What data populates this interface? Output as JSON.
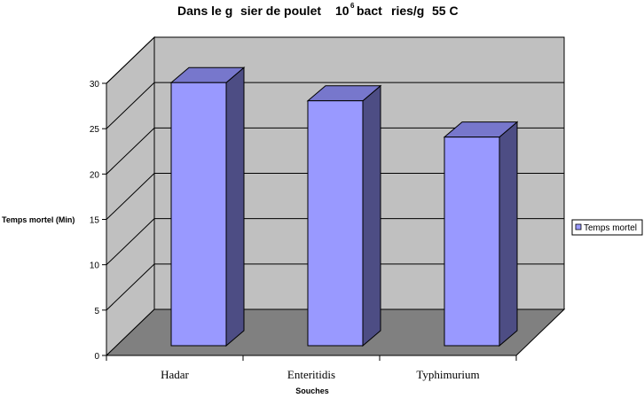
{
  "chart_data": {
    "type": "bar",
    "title": {
      "part1": "Dans le g",
      "part2": "sier de poulet",
      "part3": "10",
      "superscript": "6",
      "part4": "bact",
      "part5": "ries/g",
      "part6": "55 C"
    },
    "xlabel": "Souches",
    "ylabel": "Temps mortel (Min)",
    "categories": [
      "Hadar",
      "Enteritidis",
      "Typhimurium"
    ],
    "series": [
      {
        "name": "Temps mortel",
        "values": [
          29,
          27,
          23
        ]
      }
    ],
    "ylim": [
      0,
      30
    ],
    "yticks": [
      "0",
      "5",
      "10",
      "15",
      "20",
      "25",
      "30"
    ],
    "grid": true,
    "legend_position": "right",
    "style": "3d",
    "colors": {
      "bar_front": "#9999ff",
      "bar_top": "#7777cc",
      "bar_side": "#4d4d84",
      "back_wall": "#c0c0c0",
      "floor": "#808080",
      "side_wall": "#c0c0c0"
    }
  }
}
